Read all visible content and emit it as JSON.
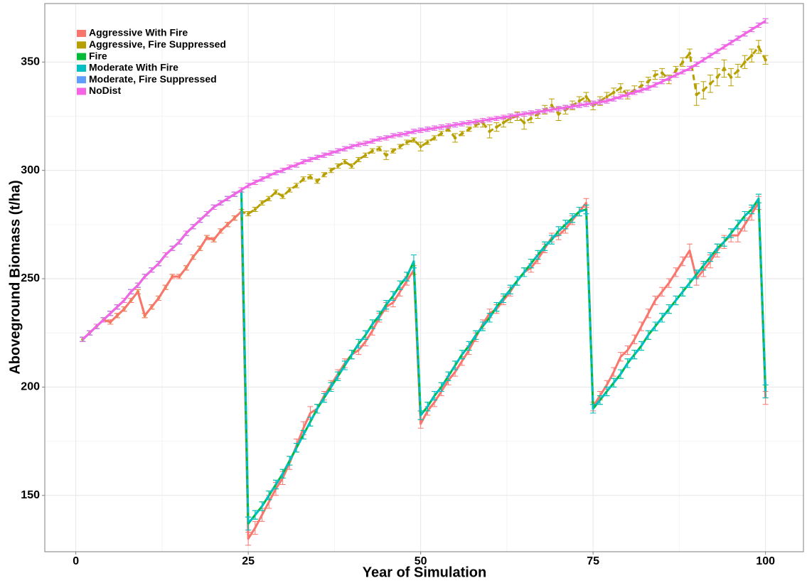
{
  "chart_data": {
    "type": "line",
    "x_label": "Year of Simulation",
    "y_label": "Aboveground Biomass (t/ha)",
    "xlim": [
      -4.5,
      105.5
    ],
    "ylim": [
      124,
      377
    ],
    "xticks": [
      0,
      25,
      50,
      75,
      100
    ],
    "yticks": [
      150,
      200,
      250,
      300,
      350
    ],
    "grid": true,
    "legend": "top-left",
    "x": [
      1,
      2,
      3,
      4,
      5,
      6,
      7,
      8,
      9,
      10,
      11,
      12,
      13,
      14,
      15,
      16,
      17,
      18,
      19,
      20,
      21,
      22,
      23,
      24,
      25,
      26,
      27,
      28,
      29,
      30,
      31,
      32,
      33,
      34,
      35,
      36,
      37,
      38,
      39,
      40,
      41,
      42,
      43,
      44,
      45,
      46,
      47,
      48,
      49,
      50,
      51,
      52,
      53,
      54,
      55,
      56,
      57,
      58,
      59,
      60,
      61,
      62,
      63,
      64,
      65,
      66,
      67,
      68,
      69,
      70,
      71,
      72,
      73,
      74,
      75,
      76,
      77,
      78,
      79,
      80,
      81,
      82,
      83,
      84,
      85,
      86,
      87,
      88,
      89,
      90,
      91,
      92,
      93,
      94,
      95,
      96,
      97,
      98,
      99,
      100
    ],
    "series": [
      {
        "name": "Aggressive, Fire Suppressed",
        "color": "#B79F00",
        "dashed": true,
        "points": true,
        "values": [
          222,
          225,
          228,
          231,
          230,
          233,
          236,
          240,
          244,
          233,
          237,
          241,
          246,
          251,
          251,
          255,
          260,
          264,
          269,
          268,
          272,
          275,
          278,
          281,
          280,
          282,
          285,
          287,
          290,
          288,
          291,
          293,
          296,
          297,
          295,
          298,
          300,
          302,
          304,
          302,
          305,
          307,
          309,
          310,
          307,
          309,
          311,
          313,
          314,
          311,
          313,
          315,
          317,
          319,
          315,
          317,
          319,
          321,
          322,
          318,
          320,
          322,
          324,
          325,
          322,
          324,
          326,
          328,
          330,
          326,
          328,
          330,
          332,
          334,
          330,
          332,
          334,
          336,
          338,
          335,
          337,
          339,
          341,
          344,
          345,
          342,
          346,
          350,
          354,
          335,
          337,
          340,
          343,
          347,
          343,
          346,
          350,
          353,
          357,
          351
        ],
        "errors": [
          1,
          1,
          1,
          1,
          1,
          1,
          1,
          1,
          1,
          1,
          1,
          1,
          1,
          1,
          1,
          1,
          1,
          1,
          1,
          1,
          1,
          1,
          1,
          1,
          1,
          1,
          1,
          1,
          1,
          1,
          1,
          1,
          1,
          1,
          1,
          1,
          1,
          1,
          1,
          1,
          1,
          1,
          1,
          1,
          2,
          1,
          1,
          1,
          1,
          2,
          1,
          1,
          1,
          1,
          2,
          1,
          1,
          1,
          2,
          3,
          2,
          2,
          2,
          2,
          3,
          2,
          2,
          2,
          3,
          3,
          2,
          2,
          2,
          2,
          2,
          2,
          2,
          2,
          2,
          2,
          2,
          2,
          2,
          2,
          2,
          2,
          2,
          2,
          2,
          5,
          4,
          4,
          4,
          4,
          4,
          3,
          3,
          3,
          3,
          2
        ]
      },
      {
        "name": "Aggressive With Fire",
        "color": "#F8766D",
        "dashed": false,
        "points": false,
        "values": [
          222,
          225,
          228,
          231,
          230,
          233,
          236,
          240,
          244,
          233,
          237,
          241,
          246,
          251,
          251,
          255,
          260,
          264,
          269,
          268,
          272,
          275,
          278,
          281,
          130,
          135,
          141,
          147,
          153,
          158,
          165,
          173,
          181,
          188,
          190,
          196,
          201,
          206,
          211,
          215,
          217,
          221,
          226,
          232,
          237,
          239,
          244,
          249,
          254,
          183,
          189,
          193,
          198,
          203,
          207,
          212,
          217,
          223,
          229,
          234,
          236,
          240,
          244,
          249,
          253,
          255,
          259,
          264,
          269,
          270,
          273,
          277,
          281,
          285,
          191,
          196,
          201,
          207,
          214,
          217,
          222,
          228,
          234,
          240,
          244,
          248,
          253,
          258,
          263,
          250,
          254,
          258,
          263,
          267,
          270,
          270,
          275,
          280,
          285,
          195
        ],
        "errors": [
          1,
          1,
          1,
          1,
          1,
          1,
          1,
          1,
          1,
          1,
          1,
          1,
          1,
          1,
          1,
          1,
          1,
          1,
          1,
          1,
          1,
          1,
          1,
          1,
          3,
          3,
          3,
          3,
          3,
          3,
          3,
          3,
          3,
          3,
          2,
          2,
          2,
          2,
          2,
          2,
          2,
          2,
          2,
          2,
          2,
          2,
          2,
          2,
          2,
          2,
          2,
          2,
          2,
          2,
          2,
          2,
          2,
          2,
          2,
          2,
          2,
          2,
          2,
          2,
          2,
          2,
          2,
          2,
          2,
          2,
          2,
          2,
          2,
          2,
          2,
          2,
          2,
          2,
          2,
          2,
          2,
          2,
          2,
          2,
          2,
          2,
          2,
          2,
          3,
          3,
          3,
          3,
          3,
          3,
          3,
          3,
          3,
          3,
          3,
          3
        ]
      },
      {
        "name": "Fire",
        "color": "#00BA38",
        "dashed": false,
        "points": false,
        "values": [
          222,
          225,
          228,
          231,
          234,
          237,
          240,
          244,
          247,
          251,
          254,
          257,
          261,
          264,
          267,
          271,
          274,
          277,
          280,
          283,
          285,
          287,
          289,
          291,
          137,
          141,
          145,
          150,
          155,
          160,
          166,
          172,
          178,
          184,
          190,
          195,
          200,
          205,
          210,
          215,
          220,
          224,
          229,
          233,
          238,
          242,
          247,
          251,
          258,
          187,
          191,
          196,
          200,
          205,
          210,
          215,
          219,
          224,
          228,
          232,
          237,
          241,
          245,
          249,
          253,
          257,
          261,
          265,
          268,
          272,
          275,
          278,
          281,
          282,
          190,
          194,
          198,
          202,
          206,
          211,
          215,
          219,
          224,
          228,
          232,
          236,
          240,
          244,
          248,
          252,
          256,
          260,
          264,
          267,
          271,
          275,
          279,
          282,
          287,
          198
        ],
        "errors": [
          1,
          1,
          1,
          1,
          1,
          1,
          1,
          1,
          1,
          1,
          1,
          1,
          1,
          1,
          1,
          1,
          1,
          1,
          1,
          1,
          1,
          1,
          1,
          1,
          3,
          2,
          2,
          2,
          2,
          2,
          2,
          2,
          2,
          2,
          2,
          2,
          2,
          2,
          2,
          2,
          2,
          2,
          2,
          2,
          2,
          2,
          2,
          2,
          3,
          2,
          2,
          2,
          2,
          2,
          2,
          2,
          2,
          2,
          2,
          2,
          2,
          2,
          2,
          2,
          2,
          2,
          2,
          2,
          2,
          2,
          2,
          2,
          2,
          2,
          2,
          2,
          2,
          2,
          2,
          2,
          2,
          2,
          2,
          2,
          2,
          2,
          2,
          2,
          2,
          2,
          2,
          2,
          2,
          2,
          2,
          2,
          2,
          2,
          2,
          3
        ]
      },
      {
        "name": "Moderate With Fire",
        "color": "#00BFC4",
        "dashed": true,
        "points": false,
        "values": [
          222,
          225,
          228,
          231,
          234,
          237,
          240,
          244,
          247,
          251,
          254,
          257,
          261,
          264,
          267,
          271,
          274,
          277,
          280,
          283,
          285,
          287,
          289,
          291,
          137,
          141,
          145,
          150,
          155,
          160,
          166,
          172,
          178,
          184,
          190,
          195,
          200,
          205,
          210,
          215,
          220,
          224,
          229,
          233,
          238,
          242,
          247,
          251,
          258,
          187,
          191,
          196,
          200,
          205,
          210,
          215,
          219,
          224,
          228,
          232,
          237,
          241,
          245,
          249,
          253,
          257,
          261,
          265,
          268,
          272,
          275,
          278,
          281,
          282,
          190,
          194,
          198,
          202,
          206,
          211,
          215,
          219,
          224,
          228,
          232,
          236,
          240,
          244,
          248,
          252,
          256,
          260,
          264,
          267,
          271,
          275,
          279,
          282,
          287,
          198
        ],
        "errors": [
          1,
          1,
          1,
          1,
          1,
          1,
          1,
          1,
          1,
          1,
          1,
          1,
          1,
          1,
          1,
          1,
          1,
          1,
          1,
          1,
          1,
          1,
          1,
          1,
          3,
          2,
          2,
          2,
          2,
          2,
          2,
          2,
          2,
          2,
          2,
          2,
          2,
          2,
          2,
          2,
          2,
          2,
          2,
          2,
          2,
          2,
          2,
          2,
          3,
          2,
          2,
          2,
          2,
          2,
          2,
          2,
          2,
          2,
          2,
          2,
          2,
          2,
          2,
          2,
          2,
          2,
          2,
          2,
          2,
          2,
          2,
          2,
          2,
          2,
          2,
          2,
          2,
          2,
          2,
          2,
          2,
          2,
          2,
          2,
          2,
          2,
          2,
          2,
          2,
          2,
          2,
          2,
          2,
          2,
          2,
          2,
          2,
          2,
          2,
          3
        ]
      },
      {
        "name": "Moderate, Fire Suppressed",
        "color": "#619CFF",
        "dashed": false,
        "points": false,
        "values": [
          222,
          225,
          228,
          231,
          234,
          237,
          240,
          244,
          247,
          251,
          254,
          257,
          261,
          264,
          267,
          271,
          274,
          277,
          280,
          283,
          285,
          287,
          289,
          291,
          293,
          294.5,
          296,
          297.5,
          299,
          300,
          301.5,
          302.5,
          304,
          305,
          306,
          307,
          308,
          309,
          310,
          311,
          312,
          312.5,
          313.5,
          314.5,
          315,
          316,
          316.5,
          317,
          318,
          318.5,
          319,
          319.5,
          320,
          320.5,
          321,
          321.5,
          322,
          322.5,
          323,
          323.5,
          324,
          324.5,
          325,
          325.5,
          326,
          326.5,
          327,
          327.5,
          328,
          328.5,
          329,
          329.5,
          330,
          330.5,
          331,
          331.5,
          332,
          333,
          334,
          335,
          336,
          337,
          338,
          339.5,
          341,
          342.5,
          344,
          345.5,
          347,
          349,
          351,
          353,
          355,
          357,
          359,
          361,
          363,
          365,
          367,
          369
        ],
        "errors": [
          1,
          1,
          1,
          1,
          1,
          1,
          1,
          1,
          1,
          1,
          1,
          1,
          1,
          1,
          1,
          1,
          1,
          1,
          1,
          1,
          1,
          1,
          1,
          1,
          1,
          1,
          1,
          1,
          1,
          1,
          1,
          1,
          1,
          1,
          1,
          1,
          1,
          1,
          1,
          1,
          1,
          1,
          1,
          1,
          1,
          1,
          1,
          1,
          1,
          1,
          1,
          1,
          1,
          1,
          1,
          1,
          1,
          1,
          1,
          1,
          1,
          1,
          1,
          1,
          1,
          1,
          1,
          1,
          1,
          1,
          1,
          1,
          1,
          1,
          1,
          1,
          1,
          1,
          1,
          1,
          1,
          1,
          1,
          1,
          1,
          1,
          1,
          1,
          1,
          1,
          1,
          1,
          1,
          1,
          1,
          1,
          1,
          1,
          1,
          1
        ]
      },
      {
        "name": "NoDist",
        "color": "#F564E3",
        "dashed": false,
        "points": false,
        "values": [
          222,
          225,
          228,
          231,
          234,
          237,
          240,
          244,
          247,
          251,
          254,
          257,
          261,
          264,
          267,
          271,
          274,
          277,
          280,
          283,
          285,
          287,
          289,
          291,
          293,
          294.5,
          296,
          297.5,
          299,
          300,
          301.5,
          302.5,
          304,
          305,
          306,
          307,
          308,
          309,
          310,
          311,
          312,
          312.5,
          313.5,
          314.5,
          315,
          316,
          316.5,
          317,
          318,
          318.5,
          319,
          319.5,
          320,
          320.5,
          321,
          321.5,
          322,
          322.5,
          323,
          323.5,
          324,
          324.5,
          325,
          325.5,
          326,
          326.5,
          327,
          327.5,
          328,
          328.5,
          329,
          329.5,
          330,
          330.5,
          331,
          331.5,
          332,
          333,
          334,
          335,
          336,
          337,
          338,
          339.5,
          341,
          342.5,
          344,
          345.5,
          347,
          349,
          351,
          353,
          355,
          357,
          359,
          361,
          363,
          365,
          367,
          369
        ],
        "errors": [
          1,
          1,
          1,
          1,
          1,
          1,
          1,
          1,
          1,
          1,
          1,
          1,
          1,
          1,
          1,
          1,
          1,
          1,
          1,
          1,
          1,
          1,
          1,
          1,
          1,
          1,
          1,
          1,
          1,
          1,
          1,
          1,
          1,
          1,
          1,
          1,
          1,
          1,
          1,
          1,
          1,
          1,
          1,
          1,
          1,
          1,
          1,
          1,
          1,
          1,
          1,
          1,
          1,
          1,
          1,
          1,
          1,
          1,
          1,
          1,
          1,
          1,
          1,
          1,
          1,
          1,
          1,
          1,
          1,
          1,
          1,
          1,
          1,
          1,
          1,
          1,
          1,
          1,
          1,
          1,
          1,
          1,
          1,
          1,
          1,
          1,
          1,
          1,
          1,
          1,
          1,
          1,
          1,
          1,
          1,
          1,
          1,
          1,
          1,
          1
        ]
      }
    ]
  }
}
